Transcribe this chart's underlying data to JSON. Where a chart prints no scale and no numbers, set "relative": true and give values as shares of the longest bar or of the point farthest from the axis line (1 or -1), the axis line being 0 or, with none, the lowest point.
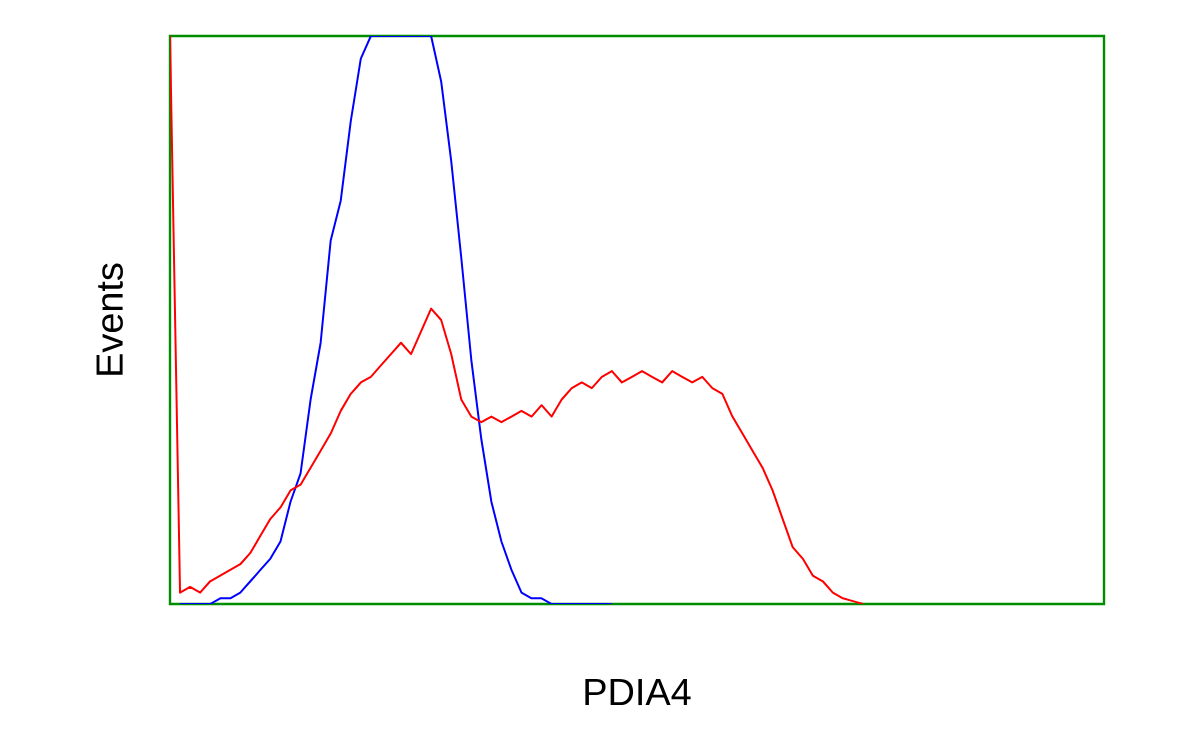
{
  "chart_data": {
    "type": "line",
    "xlabel": "PDIA4",
    "ylabel": "Events",
    "relative": true,
    "tick_labels": false,
    "categories": [
      null,
      null,
      null,
      null,
      null,
      null,
      null,
      null,
      null,
      null,
      null,
      null,
      null,
      null,
      null,
      null,
      null,
      null,
      null,
      null,
      null,
      null,
      null,
      null,
      null,
      null,
      null,
      null,
      null,
      null,
      null,
      null,
      null,
      null,
      null,
      null,
      null,
      null,
      null,
      null,
      null,
      null,
      null,
      null,
      null,
      null,
      null,
      null,
      null,
      null,
      null,
      null,
      null,
      null,
      null,
      null,
      null,
      null,
      null,
      null,
      null,
      null,
      null,
      null,
      null,
      null,
      null,
      null,
      null,
      null,
      null,
      null,
      null,
      null,
      null,
      null,
      null,
      null,
      null,
      null,
      null,
      null,
      null,
      null,
      null,
      null,
      null,
      null,
      null,
      null,
      null,
      null,
      null,
      null
    ],
    "series": [
      {
        "color": "#0000ff",
        "values": [
          null,
          0,
          0,
          0,
          0,
          0.01,
          0.01,
          0.02,
          0.04,
          0.06,
          0.08,
          0.11,
          0.18,
          0.23,
          0.36,
          0.46,
          0.64,
          0.71,
          0.85,
          0.96,
          1,
          1,
          1,
          1,
          1,
          1,
          1,
          0.92,
          0.78,
          0.61,
          0.43,
          0.29,
          0.18,
          0.11,
          0.06,
          0.02,
          0.01,
          0.01,
          0,
          0,
          0,
          0,
          0,
          0,
          0,
          null,
          null,
          null,
          null,
          null,
          null,
          null,
          null,
          null,
          null,
          null,
          null,
          null,
          null,
          null,
          null,
          null,
          null,
          null,
          null,
          null,
          null,
          null,
          null,
          null,
          null,
          null,
          null,
          null,
          null,
          null,
          null,
          null,
          null,
          null,
          null,
          null,
          null,
          null,
          null,
          null,
          null,
          null,
          null,
          null,
          null,
          null,
          null,
          null
        ]
      },
      {
        "color": "#ff0000",
        "values": [
          1,
          0.02,
          0.03,
          0.02,
          0.04,
          0.05,
          0.06,
          0.07,
          0.09,
          0.12,
          0.15,
          0.17,
          0.2,
          0.21,
          0.24,
          0.27,
          0.3,
          0.34,
          0.37,
          0.39,
          0.4,
          0.42,
          0.44,
          0.46,
          0.44,
          0.48,
          0.52,
          0.5,
          0.44,
          0.36,
          0.33,
          0.32,
          0.33,
          0.32,
          0.33,
          0.34,
          0.33,
          0.35,
          0.33,
          0.36,
          0.38,
          0.39,
          0.38,
          0.4,
          0.41,
          0.39,
          0.4,
          0.41,
          0.4,
          0.39,
          0.41,
          0.4,
          0.39,
          0.4,
          0.38,
          0.37,
          0.33,
          0.3,
          0.27,
          0.24,
          0.2,
          0.15,
          0.1,
          0.08,
          0.05,
          0.04,
          0.02,
          0.01,
          0.005,
          0,
          null,
          null,
          null,
          null,
          null,
          null,
          null,
          null,
          null,
          null,
          null,
          null,
          null,
          null,
          null,
          null,
          null,
          null,
          null,
          null,
          null,
          null,
          null,
          null
        ]
      }
    ]
  }
}
